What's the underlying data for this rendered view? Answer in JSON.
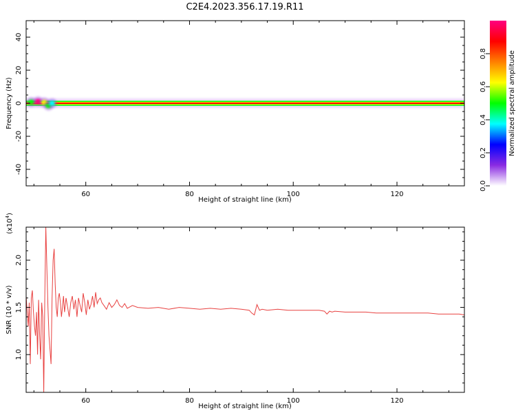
{
  "title": "C2E4.2023.356.17.19.R11",
  "chart_data": [
    {
      "type": "heatmap",
      "xlabel": "Height of straight line (km)",
      "ylabel": "Frequency (Hz)",
      "xlim": [
        48.5,
        133
      ],
      "ylim": [
        -50,
        50
      ],
      "xticks": [
        60,
        80,
        100,
        120
      ],
      "yticks": [
        40,
        20,
        0,
        -20,
        -40
      ],
      "ytick_labels": [
        "40",
        "20",
        "0",
        "-20",
        "-40"
      ],
      "colorbar": {
        "label": "Normalized spectral amplitude",
        "range": [
          0,
          1
        ],
        "ticks": [
          0.0,
          0.2,
          0.4,
          0.6,
          0.8
        ],
        "tick_labels": [
          "0.0",
          "0.2",
          "0.4",
          "0.6",
          "0.8"
        ],
        "colormap": [
          "#ffffff",
          "#8a2be2",
          "#0000ff",
          "#00ffff",
          "#00ff00",
          "#ffff00",
          "#ff8000",
          "#ff0000",
          "#ff0080"
        ]
      },
      "band": {
        "center_frequency": 0,
        "peak_amplitude": 1.0,
        "halfwidth_hz": 1.5,
        "color_core": "#ff0000",
        "color_edge": "#00ff00",
        "color_halo": "#8a2be2"
      },
      "blobs": [
        {
          "x": 49.5,
          "y": 0.8,
          "amp": 0.45
        },
        {
          "x": 50.8,
          "y": 1.2,
          "amp": 0.95
        },
        {
          "x": 52.0,
          "y": 0.5,
          "amp": 0.6
        },
        {
          "x": 52.8,
          "y": -1.5,
          "amp": 0.45
        },
        {
          "x": 53.5,
          "y": 0.0,
          "amp": 0.35
        }
      ]
    },
    {
      "type": "line",
      "xlabel": "Height of straight line (km)",
      "ylabel": "SNR (10 * v/v)",
      "scale_label": "(x10",
      "scale_exponent": "4",
      "scale_close": ")",
      "xlim": [
        48.5,
        133
      ],
      "ylim": [
        0.6,
        2.35
      ],
      "xticks": [
        60,
        80,
        100,
        120
      ],
      "yticks": [
        1.0,
        1.5,
        2.0
      ],
      "ytick_labels": [
        "1.0",
        "1.5",
        "2.0"
      ],
      "series": [
        {
          "color": "#e8403f",
          "x": [
            48.5,
            48.7,
            48.9,
            49.1,
            49.3,
            49.5,
            49.7,
            49.9,
            50.1,
            50.3,
            50.5,
            50.7,
            50.9,
            51.1,
            51.3,
            51.5,
            51.7,
            51.9,
            52.1,
            52.3,
            52.5,
            52.7,
            52.9,
            53.1,
            53.3,
            53.5,
            53.7,
            53.9,
            54.1,
            54.3,
            54.5,
            54.7,
            54.9,
            55.1,
            55.3,
            55.5,
            55.7,
            55.9,
            56.2,
            56.5,
            56.8,
            57.1,
            57.4,
            57.7,
            58.0,
            58.3,
            58.6,
            58.9,
            59.2,
            59.5,
            59.8,
            60.1,
            60.4,
            60.7,
            61.0,
            61.3,
            61.6,
            61.9,
            62.2,
            62.5,
            62.8,
            63.1,
            63.5,
            64.0,
            64.5,
            65.0,
            65.5,
            66.0,
            66.5,
            67.0,
            67.5,
            68.0,
            69.0,
            70.0,
            72.0,
            74.0,
            76.0,
            78.0,
            80.0,
            82.0,
            84.0,
            86.0,
            88.0,
            90.0,
            91.5,
            92.0,
            92.5,
            93.0,
            93.5,
            94.0,
            95.0,
            97.0,
            99.0,
            101.0,
            103.0,
            105.0,
            106.0,
            106.5,
            107.0,
            107.5,
            108.0,
            110.0,
            112.0,
            114.0,
            116.0,
            118.0,
            120.0,
            122.0,
            124.0,
            126.0,
            128.0,
            130.0,
            132.0,
            133.0
          ],
          "values": [
            1.62,
            1.45,
            1.3,
            1.55,
            0.9,
            1.6,
            1.68,
            1.45,
            1.3,
            1.2,
            1.45,
            1.0,
            1.58,
            1.2,
            0.95,
            1.55,
            1.4,
            0.6,
            1.6,
            2.35,
            1.9,
            1.5,
            1.2,
            1.05,
            0.9,
            1.6,
            2.0,
            2.12,
            1.75,
            1.5,
            1.4,
            1.6,
            1.65,
            1.55,
            1.4,
            1.5,
            1.62,
            1.45,
            1.6,
            1.5,
            1.4,
            1.55,
            1.62,
            1.48,
            1.58,
            1.4,
            1.6,
            1.52,
            1.45,
            1.65,
            1.55,
            1.42,
            1.58,
            1.48,
            1.53,
            1.62,
            1.5,
            1.66,
            1.54,
            1.58,
            1.6,
            1.55,
            1.52,
            1.48,
            1.55,
            1.5,
            1.53,
            1.58,
            1.52,
            1.5,
            1.54,
            1.49,
            1.52,
            1.5,
            1.49,
            1.5,
            1.48,
            1.5,
            1.49,
            1.48,
            1.49,
            1.48,
            1.49,
            1.48,
            1.47,
            1.44,
            1.42,
            1.53,
            1.47,
            1.48,
            1.47,
            1.48,
            1.47,
            1.47,
            1.47,
            1.47,
            1.46,
            1.43,
            1.46,
            1.45,
            1.46,
            1.45,
            1.45,
            1.45,
            1.44,
            1.44,
            1.44,
            1.44,
            1.44,
            1.44,
            1.43,
            1.43,
            1.43,
            1.42
          ]
        }
      ]
    }
  ]
}
